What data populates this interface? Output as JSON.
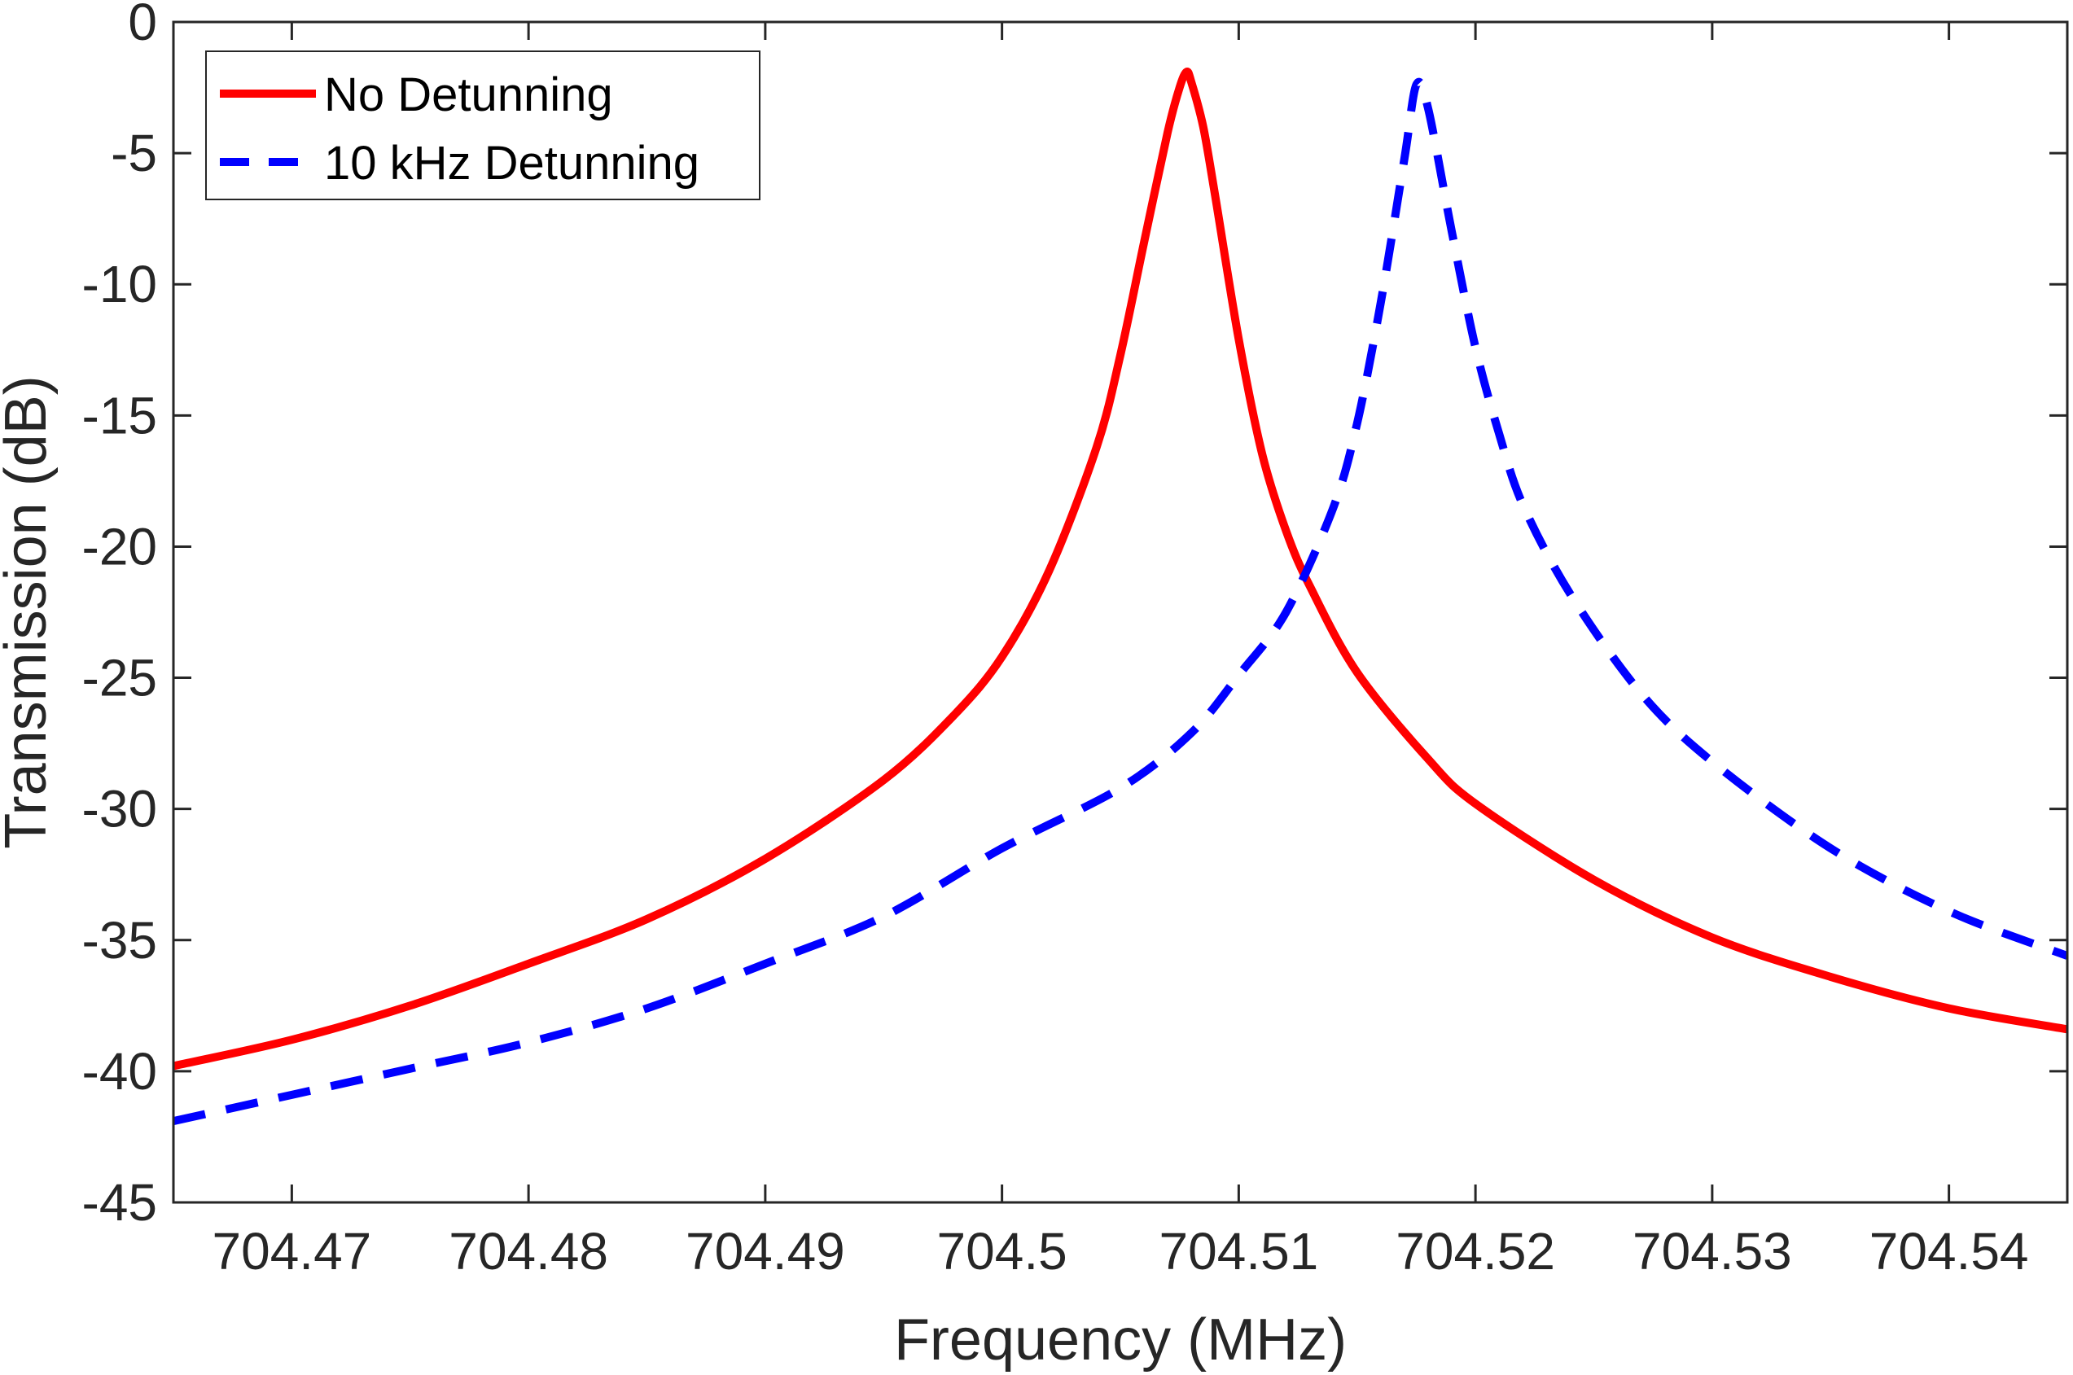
{
  "chart_data": {
    "type": "line",
    "title": "",
    "xlabel": "Frequency (MHz)",
    "ylabel": "Transmission (dB)",
    "xlim": [
      704.465,
      704.545
    ],
    "ylim": [
      -45,
      0
    ],
    "xticks": [
      704.47,
      704.48,
      704.49,
      704.5,
      704.51,
      704.52,
      704.53,
      704.54
    ],
    "xtick_labels": [
      "704.47",
      "704.48",
      "704.49",
      "704.5",
      "704.51",
      "704.52",
      "704.53",
      "704.54"
    ],
    "yticks": [
      0,
      -5,
      -10,
      -15,
      -20,
      -25,
      -30,
      -35,
      -40,
      -45
    ],
    "ytick_labels": [
      "0",
      "-5",
      "-10",
      "-15",
      "-20",
      "-25",
      "-30",
      "-35",
      "-40",
      "-45"
    ],
    "grid": false,
    "legend_position": "top-left",
    "series": [
      {
        "name": "No Detunning",
        "color": "#ff0000",
        "style": "solid",
        "x": [
          704.465,
          704.47,
          704.475,
          704.48,
          704.485,
          704.49,
          704.495,
          704.498,
          704.5,
          704.502,
          704.504,
          704.505,
          704.506,
          704.507,
          704.5075,
          704.5078,
          704.508,
          704.5085,
          704.509,
          704.51,
          704.511,
          704.512,
          704.513,
          704.515,
          704.518,
          704.52,
          704.525,
          704.53,
          704.535,
          704.54,
          704.545
        ],
        "y": [
          -39.8,
          -38.8,
          -37.5,
          -35.9,
          -34.2,
          -31.9,
          -28.9,
          -26.4,
          -24.2,
          -20.9,
          -16.2,
          -12.7,
          -8.4,
          -4.2,
          -2.5,
          -1.9,
          -2.3,
          -4.0,
          -6.6,
          -12.1,
          -16.5,
          -19.4,
          -21.5,
          -24.8,
          -28.1,
          -29.8,
          -32.7,
          -34.9,
          -36.4,
          -37.6,
          -38.4
        ]
      },
      {
        "name": "10 kHz Detunning",
        "color": "#0000ff",
        "style": "dashed",
        "x": [
          704.465,
          704.47,
          704.475,
          704.48,
          704.485,
          704.49,
          704.495,
          704.5,
          704.505,
          704.508,
          704.51,
          704.512,
          704.514,
          704.515,
          704.516,
          704.517,
          704.5175,
          704.518,
          704.519,
          704.52,
          704.521,
          704.522,
          704.524,
          704.527,
          704.53,
          704.535,
          704.54,
          704.545
        ],
        "y": [
          -41.9,
          -40.9,
          -39.9,
          -38.9,
          -37.6,
          -35.9,
          -34.1,
          -31.5,
          -29.2,
          -27.1,
          -24.9,
          -22.5,
          -18.5,
          -15.3,
          -10.7,
          -5.2,
          -2.4,
          -3.3,
          -8.0,
          -12.4,
          -15.7,
          -18.4,
          -21.8,
          -25.6,
          -28.2,
          -31.5,
          -33.9,
          -35.6
        ]
      }
    ]
  }
}
